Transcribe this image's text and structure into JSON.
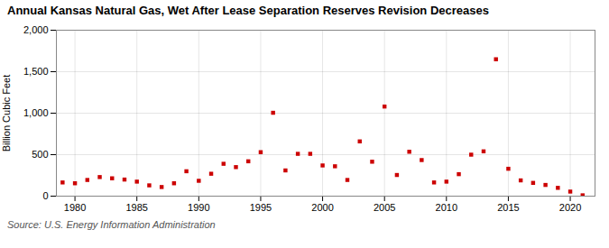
{
  "chart_data": {
    "type": "scatter",
    "title": "Annual Kansas Natural Gas, Wet After Lease Separation Reserves Revision Decreases",
    "ylabel": "Billion Cubic Feet",
    "source": "Source: U.S. Energy Information Administration",
    "x": [
      1979,
      1980,
      1981,
      1982,
      1983,
      1984,
      1985,
      1986,
      1987,
      1988,
      1989,
      1990,
      1991,
      1992,
      1993,
      1994,
      1995,
      1996,
      1997,
      1998,
      1999,
      2000,
      2001,
      2002,
      2003,
      2004,
      2005,
      2006,
      2007,
      2008,
      2009,
      2010,
      2011,
      2012,
      2013,
      2014,
      2015,
      2016,
      2017,
      2018,
      2019,
      2020,
      2021
    ],
    "values": [
      165,
      155,
      195,
      230,
      215,
      200,
      175,
      130,
      110,
      155,
      300,
      185,
      270,
      390,
      350,
      420,
      530,
      1005,
      310,
      510,
      510,
      370,
      360,
      195,
      660,
      415,
      1080,
      255,
      535,
      435,
      165,
      175,
      265,
      500,
      540,
      1650,
      330,
      190,
      160,
      135,
      100,
      55,
      10
    ],
    "color": "#cc0000",
    "marker": "square",
    "xlim": [
      1978.5,
      2022
    ],
    "xticks": [
      1980,
      1985,
      1990,
      1995,
      2000,
      2005,
      2010,
      2015,
      2020
    ],
    "ylim": [
      0,
      2000
    ],
    "yticks": [
      0,
      500,
      {
        "value": 1000,
        "label": "1,000"
      },
      {
        "value": 1500,
        "label": "1,500"
      },
      {
        "value": 2000,
        "label": "2,000"
      }
    ],
    "grid": true
  }
}
